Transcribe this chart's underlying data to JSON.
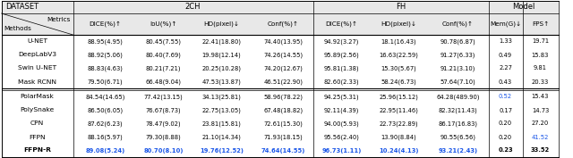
{
  "header2": [
    "",
    "DICE(%)↑",
    "IoU(%)↑",
    "HD(pixel)↓",
    "Conf(%)↑",
    "DICE(%)↑",
    "HD(pixel)↓",
    "Conf(%)↑",
    "Mem(G)↓",
    "FPS↑"
  ],
  "rows": [
    [
      "U-NET",
      "88.95(4.95)",
      "80.45(7.55)",
      "22.41(18.80)",
      "74.40(13.95)",
      "94.92(3.27)",
      "18.1(16.43)",
      "90.78(6.87)",
      "1.33",
      "19.71"
    ],
    [
      "DeepLabV3",
      "88.92(5.06)",
      "80.40(7.69)",
      "19.98(12.14)",
      "74.26(14.55)",
      "95.89(2.56)",
      "16.63(22.59)",
      "91.27(6.33)",
      "0.49",
      "15.83"
    ],
    [
      "Swin U-NET",
      "88.83(4.63)",
      "80.21(7.21)",
      "20.25(10.28)",
      "74.20(12.67)",
      "95.81(1.38)",
      "15.30(5.67)",
      "91.21(3.10)",
      "2.27",
      "9.81"
    ],
    [
      "Mask RCNN",
      "79.50(6.71)",
      "66.48(9.04)",
      "47.53(13.87)",
      "46.51(22.90)",
      "82.60(2.33)",
      "58.24(6.73)",
      "57.64(7.10)",
      "0.43",
      "20.33"
    ],
    [
      "PolarMask",
      "84.54(14.65)",
      "77.42(13.15)",
      "34.13(25.81)",
      "58.96(78.22)",
      "94.25(5.31)",
      "25.96(15.12)",
      "64.28(489.90)",
      "0.52",
      "15.43"
    ],
    [
      "PolySnake",
      "86.50(6.05)",
      "76.67(8.73)",
      "22.75(13.05)",
      "67.48(18.82)",
      "92.11(4.39)",
      "22.95(11.46)",
      "82.32(11.43)",
      "0.17",
      "14.73"
    ],
    [
      "CPN",
      "87.62(6.23)",
      "78.47(9.02)",
      "23.81(15.81)",
      "72.61(15.30)",
      "94.00(5.93)",
      "22.73(22.89)",
      "86.17(16.83)",
      "0.20",
      "27.20"
    ],
    [
      "FFPN",
      "88.16(5.97)",
      "79.30(8.88)",
      "21.10(14.34)",
      "71.93(18.15)",
      "95.56(2.40)",
      "13.90(8.84)",
      "90.55(6.56)",
      "0.20",
      "41.52"
    ],
    [
      "FFPN-R",
      "89.08(5.24)",
      "80.70(8.10)",
      "19.76(12.52)",
      "74.64(14.55)",
      "96.73(1.11)",
      "10.24(4.13)",
      "93.21(2.43)",
      "0.23",
      "33.52"
    ]
  ],
  "blue_cells": {
    "4,8": true,
    "7,9": true,
    "8,1": true,
    "8,2": true,
    "8,3": true,
    "8,4": true,
    "8,5": true,
    "8,6": true,
    "8,7": true
  },
  "header_bg": "#e8e8e8",
  "fig_width": 6.4,
  "fig_height": 1.77,
  "dpi": 100
}
